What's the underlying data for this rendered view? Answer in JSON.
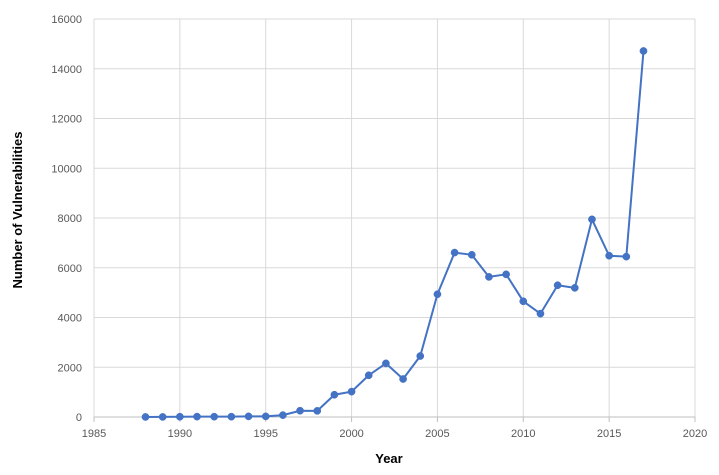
{
  "chart_data": {
    "type": "line",
    "title": "",
    "xlabel": "Year",
    "ylabel": "Number of Vulnerabilities",
    "xlim": [
      1985,
      2020
    ],
    "ylim": [
      0,
      16000
    ],
    "x_ticks": [
      1985,
      1990,
      1995,
      2000,
      2005,
      2010,
      2015,
      2020
    ],
    "y_ticks": [
      0,
      2000,
      4000,
      6000,
      8000,
      10000,
      12000,
      14000,
      16000
    ],
    "grid": true,
    "legend": "none",
    "series": [
      {
        "color": "#4472c4",
        "x": [
          1988,
          1989,
          1990,
          1991,
          1992,
          1993,
          1994,
          1995,
          1996,
          1997,
          1998,
          1999,
          2000,
          2001,
          2002,
          2003,
          2004,
          2005,
          2006,
          2007,
          2008,
          2009,
          2010,
          2011,
          2012,
          2013,
          2014,
          2015,
          2016,
          2017
        ],
        "y": [
          2,
          3,
          11,
          15,
          13,
          13,
          25,
          25,
          75,
          252,
          246,
          894,
          1020,
          1677,
          2156,
          1527,
          2451,
          4935,
          6610,
          6520,
          5632,
          5736,
          4652,
          4155,
          5297,
          5191,
          7946,
          6484,
          6447,
          14714
        ]
      }
    ]
  }
}
